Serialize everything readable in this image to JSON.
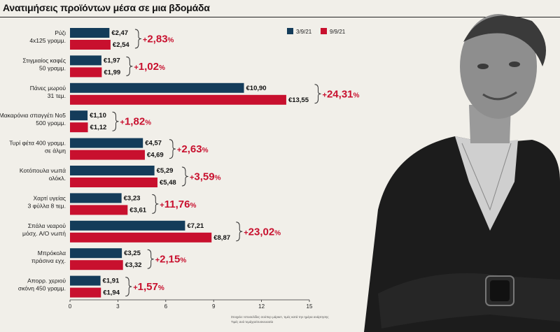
{
  "header": {
    "title": "Ανατιμήσεις προϊόντων μέσα σε μια βδομάδα"
  },
  "colors": {
    "series1": "#143c5a",
    "series2": "#c8102e",
    "accent_text": "#c8102e"
  },
  "chart_data": {
    "type": "bar",
    "orientation": "horizontal",
    "title": "Ανατιμήσεις προϊόντων μέσα σε μια βδομάδα",
    "legend_position": "top-right",
    "xlim": [
      0,
      15
    ],
    "xticks": [
      0,
      3,
      6,
      9,
      12,
      15
    ],
    "grid": false,
    "value_prefix": "€",
    "categories": [
      [
        "Ρύζι",
        "4x125 γραμμ."
      ],
      [
        "Στιγμιαίος καφές",
        "50 γραμμ."
      ],
      [
        "Πάνες μωρού",
        "31 τεμ."
      ],
      [
        "Μακαρόνια σπαγγέτι Νο5",
        "500 γραμμ."
      ],
      [
        "Τυρί φέτα 400 γραμμ.",
        "σε άλμη"
      ],
      [
        "Κοτόπουλα νωπά",
        "ολόκλ."
      ],
      [
        "Χαρτί υγείας",
        "3 φύλλα 8 τεμ."
      ],
      [
        "Σπάλα νεαρού",
        "μόσχ. Α/Ο νωπή"
      ],
      [
        "Μπρόκολα",
        "πράσινα εγχ."
      ],
      [
        "Απορρ. χεριού",
        "σκόνη 450 γραμμ."
      ]
    ],
    "series": [
      {
        "name": "3/9/21",
        "values": [
          2.47,
          1.97,
          10.9,
          1.1,
          4.57,
          5.29,
          3.23,
          7.21,
          3.25,
          1.91
        ],
        "labels": [
          "€2,47",
          "€1,97",
          "€10,90",
          "€1,10",
          "€4,57",
          "€5,29",
          "€3,23",
          "€7,21",
          "€3,25",
          "€1,91"
        ]
      },
      {
        "name": "9/9/21",
        "values": [
          2.54,
          1.99,
          13.55,
          1.12,
          4.69,
          5.48,
          3.61,
          8.87,
          3.32,
          1.94
        ],
        "labels": [
          "€2,54",
          "€1,99",
          "€13,55",
          "€1,12",
          "€4,69",
          "€5,48",
          "€3,61",
          "€8,87",
          "€3,32",
          "€1,94"
        ]
      }
    ],
    "change_percent": [
      2.83,
      1.02,
      24.31,
      1.82,
      2.63,
      3.59,
      11.76,
      23.02,
      2.15,
      1.57
    ],
    "change_labels": [
      "2,83",
      "1,02",
      "24,31",
      "1,82",
      "2,63",
      "3,59",
      "11,76",
      "23,02",
      "2,15",
      "1,57"
    ],
    "change_prefix": "+",
    "change_suffix": "%",
    "tick_labels": [
      "0",
      "3",
      "6",
      "9",
      "12",
      "15"
    ]
  },
  "source": {
    "line1": "Στοιχεία: Ιστοσελίδες σούπερ μάρκετ, τιμές κατά την ημέρα ανάρτησης",
    "line2": "Τιμές ανά τεμάχιο/συσκευασία"
  }
}
